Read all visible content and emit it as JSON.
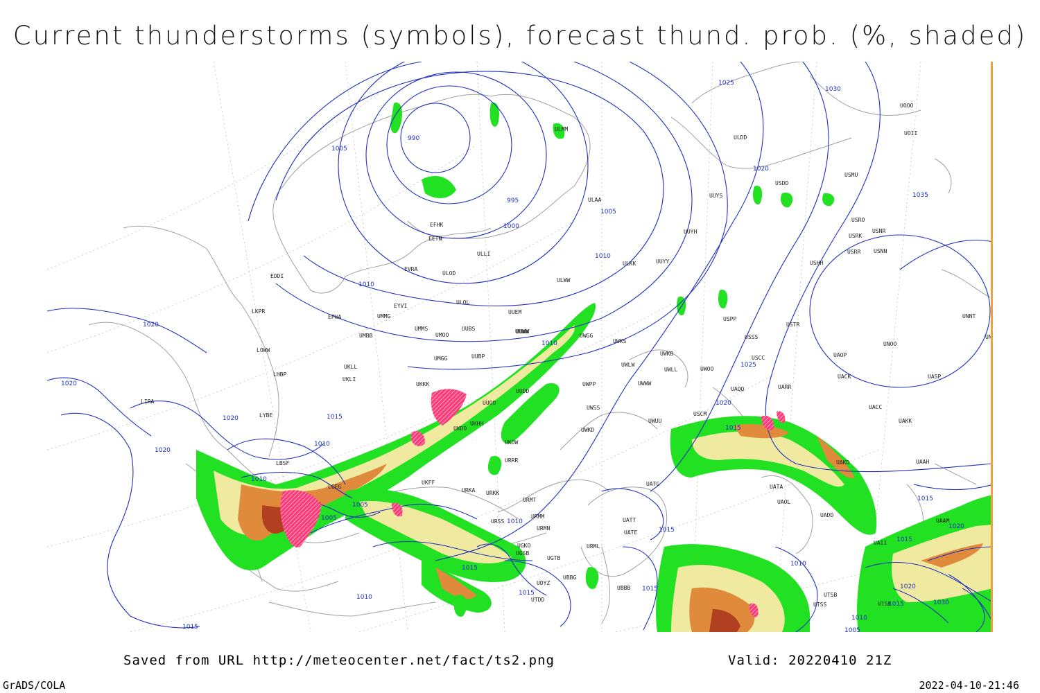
{
  "title": "Current thunderstorms (symbols), forecast thund. prob. (%, shaded)",
  "footer": {
    "saved_text": "Saved from URL http://meteocenter.net/fact/ts2.png",
    "valid_text": "Valid: 20220410 21Z",
    "software": "GrADS/COLA",
    "timestamp": "2022-04-10-21:46"
  },
  "colors": {
    "isobar": "#1e2fbf",
    "coastline": "#a0a0a0",
    "grid": "#b8b8b8",
    "prob_low": "#22e022",
    "prob_mid": "#f0eaa0",
    "prob_high": "#e08a3c",
    "prob_max": "#b04020",
    "storm_symbol": "#ff3a78"
  },
  "stations": [
    "EFHK",
    "EETN",
    "EVRA",
    "ULOD",
    "ULLI",
    "ULAA",
    "ULMM",
    "ULDD",
    "USDD",
    "USMU",
    "UUYS",
    "UUYH",
    "UUYY",
    "ULKK",
    "ULWW",
    "EDDI",
    "EYVI",
    "ULOL",
    "UUEM",
    "EPWA",
    "UMMG",
    "UMMS",
    "UMOO",
    "UUBS",
    "UUWW",
    "UWGG",
    "UWKS",
    "UMBB",
    "LKPR",
    "LOWW",
    "UKLL",
    "UKLI",
    "LHBP",
    "UMGG",
    "UUBP",
    "UKKK",
    "UUOO",
    "UKHH",
    "UKDD",
    "UKOW",
    "URRR",
    "LIRA",
    "LYBE",
    "LBSF",
    "LGEG",
    "UKFF",
    "URKA",
    "URKK",
    "URMT",
    "URMM",
    "URMN",
    "URML",
    "URSS",
    "UGKO",
    "UGSB",
    "UGTB",
    "UBBB",
    "UBBG",
    "UDYZ",
    "UTDD",
    "UTSB",
    "UTSS",
    "UATG",
    "UATA",
    "UATE",
    "UATT",
    "UAOL",
    "UADD",
    "UAKD",
    "UAII",
    "UACC",
    "UAKK",
    "UAAH",
    "UAAM",
    "UTSK",
    "UUDD",
    "UWPP",
    "UWWW",
    "UWSS",
    "UWKD",
    "UWKB",
    "UWLL",
    "UWLW",
    "UWOO",
    "USCM",
    "UAQQ",
    "UARR",
    "UWUU",
    "USSS",
    "USCC",
    "USTR",
    "USPP",
    "UACK",
    "UAOP",
    "UNOO",
    "UNNT",
    "UNBB",
    "UASP",
    "USHH",
    "USRO",
    "USRK",
    "USNR",
    "USRR",
    "USNN",
    "UOII",
    "UOOO",
    "UUWW"
  ],
  "isobar_labels": [
    "1025",
    "1030",
    "1035",
    "1020",
    "1005",
    "990",
    "995",
    "1000",
    "1005",
    "1010",
    "1010",
    "1020",
    "1015",
    "1010",
    "1020",
    "1020",
    "1020",
    "1010",
    "1015",
    "1010",
    "1005",
    "1005",
    "1010",
    "1015",
    "1015",
    "1010",
    "1015",
    "1015",
    "1015",
    "1010",
    "1025",
    "1020",
    "1015",
    "1030",
    "1015",
    "1010",
    "1005",
    "1020",
    "1020",
    "1015"
  ],
  "map_name": "thunderstorm-probability-map"
}
